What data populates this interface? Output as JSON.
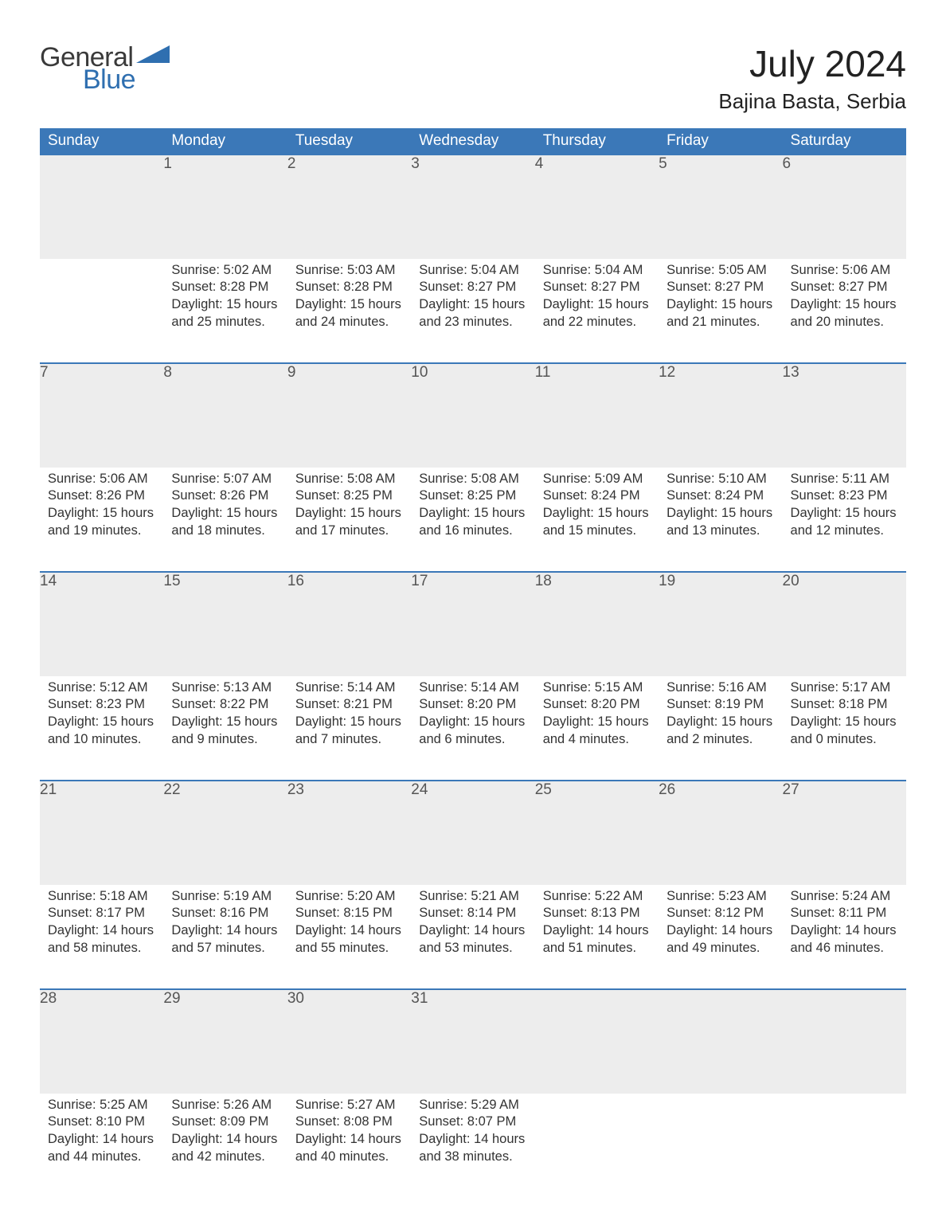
{
  "brand": {
    "word1": "General",
    "word2": "Blue",
    "word1_color": "#3a3a3a",
    "word2_color": "#2f6fb0",
    "triangle_color": "#2f6fb0",
    "font_size": 34
  },
  "title": {
    "month": "July 2024",
    "location": "Bajina Basta, Serbia",
    "month_fontsize": 46,
    "location_fontsize": 26,
    "text_color": "#222222"
  },
  "colors": {
    "header_bg": "#3b78b8",
    "header_text": "#ffffff",
    "daynum_bg": "#ededed",
    "daynum_text": "#555555",
    "body_text": "#333333",
    "week_rule": "#3b78b8",
    "page_bg": "#ffffff"
  },
  "typography": {
    "weekday_fontsize": 19,
    "daynum_fontsize": 19,
    "cell_fontsize": 16.5,
    "font_family": "Arial"
  },
  "weekdays": [
    "Sunday",
    "Monday",
    "Tuesday",
    "Wednesday",
    "Thursday",
    "Friday",
    "Saturday"
  ],
  "weeks": [
    [
      null,
      {
        "day": "1",
        "sunrise": "Sunrise: 5:02 AM",
        "sunset": "Sunset: 8:28 PM",
        "day1": "Daylight: 15 hours",
        "day2": "and 25 minutes."
      },
      {
        "day": "2",
        "sunrise": "Sunrise: 5:03 AM",
        "sunset": "Sunset: 8:28 PM",
        "day1": "Daylight: 15 hours",
        "day2": "and 24 minutes."
      },
      {
        "day": "3",
        "sunrise": "Sunrise: 5:04 AM",
        "sunset": "Sunset: 8:27 PM",
        "day1": "Daylight: 15 hours",
        "day2": "and 23 minutes."
      },
      {
        "day": "4",
        "sunrise": "Sunrise: 5:04 AM",
        "sunset": "Sunset: 8:27 PM",
        "day1": "Daylight: 15 hours",
        "day2": "and 22 minutes."
      },
      {
        "day": "5",
        "sunrise": "Sunrise: 5:05 AM",
        "sunset": "Sunset: 8:27 PM",
        "day1": "Daylight: 15 hours",
        "day2": "and 21 minutes."
      },
      {
        "day": "6",
        "sunrise": "Sunrise: 5:06 AM",
        "sunset": "Sunset: 8:27 PM",
        "day1": "Daylight: 15 hours",
        "day2": "and 20 minutes."
      }
    ],
    [
      {
        "day": "7",
        "sunrise": "Sunrise: 5:06 AM",
        "sunset": "Sunset: 8:26 PM",
        "day1": "Daylight: 15 hours",
        "day2": "and 19 minutes."
      },
      {
        "day": "8",
        "sunrise": "Sunrise: 5:07 AM",
        "sunset": "Sunset: 8:26 PM",
        "day1": "Daylight: 15 hours",
        "day2": "and 18 minutes."
      },
      {
        "day": "9",
        "sunrise": "Sunrise: 5:08 AM",
        "sunset": "Sunset: 8:25 PM",
        "day1": "Daylight: 15 hours",
        "day2": "and 17 minutes."
      },
      {
        "day": "10",
        "sunrise": "Sunrise: 5:08 AM",
        "sunset": "Sunset: 8:25 PM",
        "day1": "Daylight: 15 hours",
        "day2": "and 16 minutes."
      },
      {
        "day": "11",
        "sunrise": "Sunrise: 5:09 AM",
        "sunset": "Sunset: 8:24 PM",
        "day1": "Daylight: 15 hours",
        "day2": "and 15 minutes."
      },
      {
        "day": "12",
        "sunrise": "Sunrise: 5:10 AM",
        "sunset": "Sunset: 8:24 PM",
        "day1": "Daylight: 15 hours",
        "day2": "and 13 minutes."
      },
      {
        "day": "13",
        "sunrise": "Sunrise: 5:11 AM",
        "sunset": "Sunset: 8:23 PM",
        "day1": "Daylight: 15 hours",
        "day2": "and 12 minutes."
      }
    ],
    [
      {
        "day": "14",
        "sunrise": "Sunrise: 5:12 AM",
        "sunset": "Sunset: 8:23 PM",
        "day1": "Daylight: 15 hours",
        "day2": "and 10 minutes."
      },
      {
        "day": "15",
        "sunrise": "Sunrise: 5:13 AM",
        "sunset": "Sunset: 8:22 PM",
        "day1": "Daylight: 15 hours",
        "day2": "and 9 minutes."
      },
      {
        "day": "16",
        "sunrise": "Sunrise: 5:14 AM",
        "sunset": "Sunset: 8:21 PM",
        "day1": "Daylight: 15 hours",
        "day2": "and 7 minutes."
      },
      {
        "day": "17",
        "sunrise": "Sunrise: 5:14 AM",
        "sunset": "Sunset: 8:20 PM",
        "day1": "Daylight: 15 hours",
        "day2": "and 6 minutes."
      },
      {
        "day": "18",
        "sunrise": "Sunrise: 5:15 AM",
        "sunset": "Sunset: 8:20 PM",
        "day1": "Daylight: 15 hours",
        "day2": "and 4 minutes."
      },
      {
        "day": "19",
        "sunrise": "Sunrise: 5:16 AM",
        "sunset": "Sunset: 8:19 PM",
        "day1": "Daylight: 15 hours",
        "day2": "and 2 minutes."
      },
      {
        "day": "20",
        "sunrise": "Sunrise: 5:17 AM",
        "sunset": "Sunset: 8:18 PM",
        "day1": "Daylight: 15 hours",
        "day2": "and 0 minutes."
      }
    ],
    [
      {
        "day": "21",
        "sunrise": "Sunrise: 5:18 AM",
        "sunset": "Sunset: 8:17 PM",
        "day1": "Daylight: 14 hours",
        "day2": "and 58 minutes."
      },
      {
        "day": "22",
        "sunrise": "Sunrise: 5:19 AM",
        "sunset": "Sunset: 8:16 PM",
        "day1": "Daylight: 14 hours",
        "day2": "and 57 minutes."
      },
      {
        "day": "23",
        "sunrise": "Sunrise: 5:20 AM",
        "sunset": "Sunset: 8:15 PM",
        "day1": "Daylight: 14 hours",
        "day2": "and 55 minutes."
      },
      {
        "day": "24",
        "sunrise": "Sunrise: 5:21 AM",
        "sunset": "Sunset: 8:14 PM",
        "day1": "Daylight: 14 hours",
        "day2": "and 53 minutes."
      },
      {
        "day": "25",
        "sunrise": "Sunrise: 5:22 AM",
        "sunset": "Sunset: 8:13 PM",
        "day1": "Daylight: 14 hours",
        "day2": "and 51 minutes."
      },
      {
        "day": "26",
        "sunrise": "Sunrise: 5:23 AM",
        "sunset": "Sunset: 8:12 PM",
        "day1": "Daylight: 14 hours",
        "day2": "and 49 minutes."
      },
      {
        "day": "27",
        "sunrise": "Sunrise: 5:24 AM",
        "sunset": "Sunset: 8:11 PM",
        "day1": "Daylight: 14 hours",
        "day2": "and 46 minutes."
      }
    ],
    [
      {
        "day": "28",
        "sunrise": "Sunrise: 5:25 AM",
        "sunset": "Sunset: 8:10 PM",
        "day1": "Daylight: 14 hours",
        "day2": "and 44 minutes."
      },
      {
        "day": "29",
        "sunrise": "Sunrise: 5:26 AM",
        "sunset": "Sunset: 8:09 PM",
        "day1": "Daylight: 14 hours",
        "day2": "and 42 minutes."
      },
      {
        "day": "30",
        "sunrise": "Sunrise: 5:27 AM",
        "sunset": "Sunset: 8:08 PM",
        "day1": "Daylight: 14 hours",
        "day2": "and 40 minutes."
      },
      {
        "day": "31",
        "sunrise": "Sunrise: 5:29 AM",
        "sunset": "Sunset: 8:07 PM",
        "day1": "Daylight: 14 hours",
        "day2": "and 38 minutes."
      },
      null,
      null,
      null
    ]
  ]
}
